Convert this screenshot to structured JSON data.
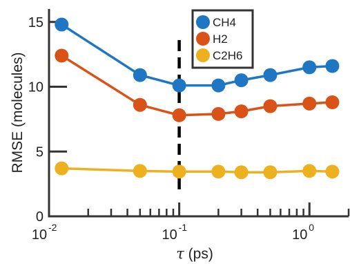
{
  "chart_data": {
    "type": "line",
    "xscale": "log",
    "xlim": [
      0.01,
      2
    ],
    "ylim": [
      0,
      16
    ],
    "xlabel_symbol": "τ",
    "xlabel_unit": "(ps)",
    "ylabel": "RMSE (molecules)",
    "xticks": [
      {
        "value": 0.01,
        "base": "10",
        "exp": "-2"
      },
      {
        "value": 0.1,
        "base": "10",
        "exp": "-1"
      },
      {
        "value": 1,
        "base": "10",
        "exp": "0"
      }
    ],
    "yticks": [
      "0",
      "5",
      "10",
      "15"
    ],
    "ytick_values": [
      0,
      5,
      10,
      15
    ],
    "grid": false,
    "legend_position": "top-center",
    "vline": {
      "x": 0.1,
      "style": "dashed",
      "color": "#000000"
    },
    "x": [
      0.0125,
      0.05,
      0.1,
      0.2,
      0.3,
      0.5,
      1.0,
      1.5
    ],
    "series": [
      {
        "name": "CH4",
        "color": "#1f77c4",
        "values": [
          14.8,
          10.9,
          10.1,
          10.1,
          10.5,
          10.9,
          11.5,
          11.6
        ]
      },
      {
        "name": "H2",
        "color": "#d95319",
        "values": [
          12.4,
          8.6,
          7.8,
          7.9,
          8.1,
          8.5,
          8.7,
          8.8
        ]
      },
      {
        "name": "C2H6",
        "color": "#edb120",
        "values": [
          3.7,
          3.5,
          3.45,
          3.45,
          3.4,
          3.4,
          3.5,
          3.45
        ]
      }
    ]
  }
}
